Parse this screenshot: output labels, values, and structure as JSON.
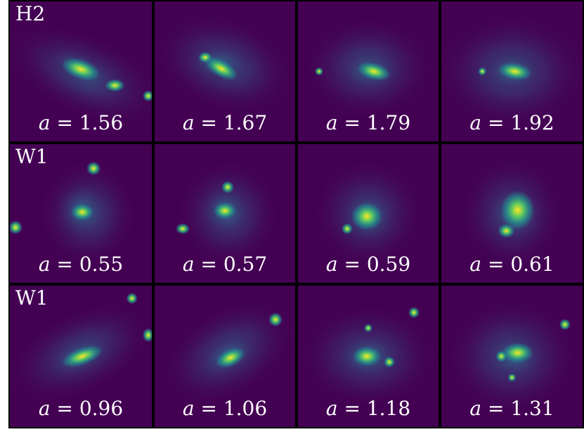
{
  "figure": {
    "rows": [
      {
        "label": "H2",
        "panels": [
          {
            "var": "a",
            "op": "=",
            "value": "1.56",
            "style": "a"
          },
          {
            "var": "a",
            "op": "=",
            "value": "1.67",
            "style": "b"
          },
          {
            "var": "a",
            "op": "=",
            "value": "1.79",
            "style": "c"
          },
          {
            "var": "a",
            "op": "=",
            "value": "1.92",
            "style": "d"
          }
        ]
      },
      {
        "label": "W1",
        "panels": [
          {
            "var": "a",
            "op": "=",
            "value": "0.55",
            "style": "e"
          },
          {
            "var": "a",
            "op": "=",
            "value": "0.57",
            "style": "f"
          },
          {
            "var": "a",
            "op": "=",
            "value": "0.59",
            "style": "g"
          },
          {
            "var": "a",
            "op": "=",
            "value": "0.61",
            "style": "h"
          }
        ]
      },
      {
        "label": "W1",
        "panels": [
          {
            "var": "a",
            "op": "=",
            "value": "0.96",
            "style": "i"
          },
          {
            "var": "a",
            "op": "=",
            "value": "1.06",
            "style": "j"
          },
          {
            "var": "a",
            "op": "=",
            "value": "1.18",
            "style": "k"
          },
          {
            "var": "a",
            "op": "=",
            "value": "1.31",
            "style": "l"
          }
        ]
      }
    ],
    "colors": {
      "background": "#440154",
      "mid": "#31688e",
      "teal": "#21918c",
      "green": "#5ec962",
      "yellow": "#fde725"
    }
  }
}
